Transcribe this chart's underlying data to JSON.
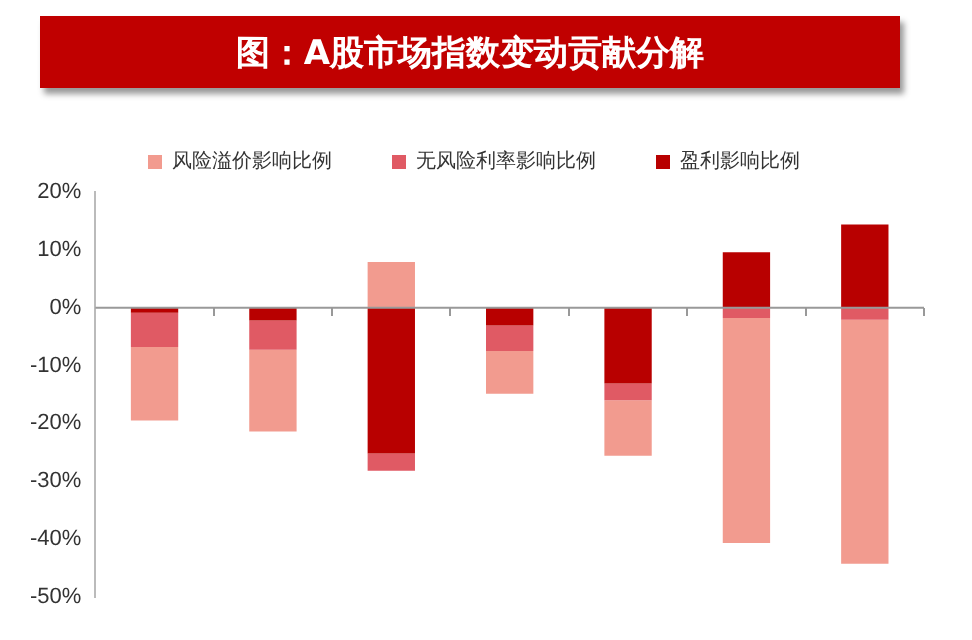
{
  "chart_data": {
    "type": "bar",
    "title": "图：A股市场指数变动贡献分解",
    "categories": [
      null,
      null,
      null,
      null,
      null,
      null,
      null
    ],
    "stacked": true,
    "series": [
      {
        "name": "盈利影响比例",
        "color": "#b80000",
        "values": [
          -0.9,
          -2.2,
          -25.2,
          -3.1,
          -13.1,
          9.6,
          14.4
        ]
      },
      {
        "name": "无风险利率影响比例",
        "color": "#e05a64",
        "values": [
          -5.9,
          -5.1,
          -3.0,
          -4.4,
          -2.9,
          -1.8,
          -2.1
        ]
      },
      {
        "name": "风险溢价影响比例",
        "color": "#f29b8f",
        "values": [
          -12.7,
          -14.1,
          7.9,
          -7.4,
          -9.6,
          -38.9,
          -42.2
        ]
      }
    ],
    "ylim": [
      -50,
      20
    ],
    "yticks": [
      {
        "value": -50,
        "label": "-50%"
      },
      {
        "value": -40,
        "label": "-40%"
      },
      {
        "value": -30,
        "label": "-30%"
      },
      {
        "value": -20,
        "label": "-20%"
      },
      {
        "value": -10,
        "label": "-10%"
      },
      {
        "value": 0,
        "label": "0%"
      },
      {
        "value": 10,
        "label": "10%"
      },
      {
        "value": 20,
        "label": "20%"
      }
    ],
    "ref_lines": [
      {
        "axis": "y",
        "value": 0,
        "color": "#999999"
      }
    ],
    "grid": false,
    "legend": "top"
  }
}
